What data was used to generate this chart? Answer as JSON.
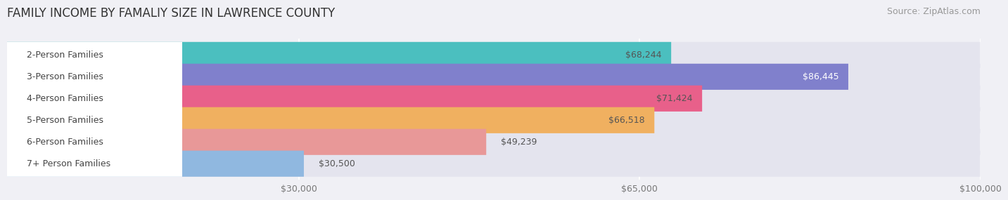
{
  "title": "FAMILY INCOME BY FAMALIY SIZE IN LAWRENCE COUNTY",
  "source": "Source: ZipAtlas.com",
  "categories": [
    "2-Person Families",
    "3-Person Families",
    "4-Person Families",
    "5-Person Families",
    "6-Person Families",
    "7+ Person Families"
  ],
  "values": [
    68244,
    86445,
    71424,
    66518,
    49239,
    30500
  ],
  "bar_colors": [
    "#4bbfbf",
    "#8080cc",
    "#e8608a",
    "#f0b060",
    "#e89898",
    "#90b8e0"
  ],
  "value_inside": [
    true,
    true,
    true,
    true,
    false,
    false
  ],
  "value_label_colors": [
    "#555555",
    "#ffffff",
    "#555555",
    "#555555",
    "#555555",
    "#555555"
  ],
  "xmin": 0,
  "xmax": 100000,
  "xticks": [
    30000,
    65000,
    100000
  ],
  "xtick_labels": [
    "$30,000",
    "$65,000",
    "$100,000"
  ],
  "background_color": "#f0f0f5",
  "bar_background_color": "#e4e4ee",
  "title_fontsize": 12,
  "source_fontsize": 9,
  "value_fontsize": 9,
  "category_fontsize": 9
}
